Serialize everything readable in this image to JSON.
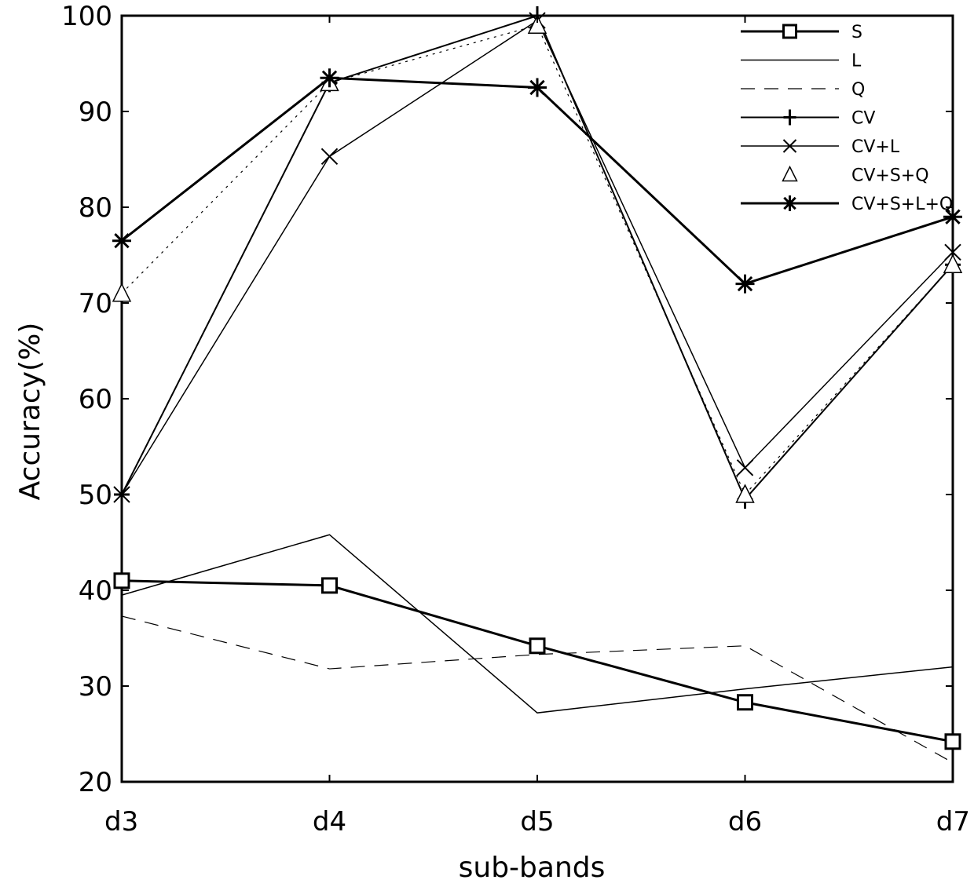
{
  "chart_data": {
    "type": "line",
    "title": "",
    "xlabel": "sub-bands",
    "ylabel": "Accuracy(%)",
    "categories": [
      "d3",
      "d4",
      "d5",
      "d6",
      "d7"
    ],
    "ylim": [
      20,
      100
    ],
    "yticks": [
      20,
      30,
      40,
      50,
      60,
      70,
      80,
      90,
      100
    ],
    "grid": false,
    "legend_position": "top-right",
    "series": [
      {
        "name": "S",
        "marker": "square",
        "dash": "solid",
        "stroke": "#000000",
        "width": 3,
        "values": [
          41,
          40.5,
          34.2,
          28.3,
          24.2
        ]
      },
      {
        "name": "L",
        "marker": "none",
        "dash": "solid",
        "stroke": "#000000",
        "width": 1.5,
        "values": [
          39.5,
          45.8,
          27.2,
          29.7,
          32
        ]
      },
      {
        "name": "Q",
        "marker": "none",
        "dash": "dashed",
        "stroke": "#000000",
        "width": 1.2,
        "values": [
          37.3,
          31.8,
          33.3,
          34.2,
          22
        ]
      },
      {
        "name": "CV",
        "marker": "plus",
        "dash": "solid",
        "stroke": "#000000",
        "width": 2,
        "values": [
          50,
          93,
          100,
          49.5,
          74
        ]
      },
      {
        "name": "CV+L",
        "marker": "x",
        "dash": "solid",
        "stroke": "#000000",
        "width": 1.5,
        "values": [
          50,
          85.3,
          99.5,
          52.8,
          75.3
        ]
      },
      {
        "name": "CV+S+Q",
        "marker": "triangle",
        "dash": "dotted",
        "stroke": "#000000",
        "width": 1.2,
        "values": [
          71,
          93,
          99,
          50,
          74
        ]
      },
      {
        "name": "CV+S+L+Q",
        "marker": "star",
        "dash": "solid",
        "stroke": "#000000",
        "width": 3,
        "values": [
          76.5,
          93.5,
          92.5,
          72,
          79
        ]
      }
    ]
  }
}
